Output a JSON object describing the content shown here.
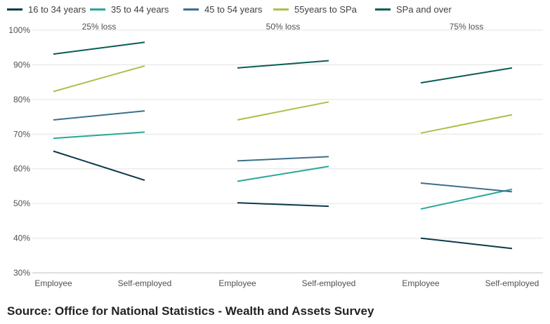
{
  "legend": {
    "items": [
      {
        "label": "16 to 34 years",
        "color": "#0b3a4a"
      },
      {
        "label": "35 to 44 years",
        "color": "#27a89a"
      },
      {
        "label": "45 to 54 years",
        "color": "#3d6f8c"
      },
      {
        "label": "55years to SPa",
        "color": "#a8c14a"
      },
      {
        "label": "SPa and over",
        "color": "#0a5c54"
      }
    ]
  },
  "source": "Source: Office for National Statistics - Wealth and Assets Survey",
  "chart_data": {
    "type": "line",
    "ylim": [
      30,
      100
    ],
    "yticks": [
      "30%",
      "40%",
      "50%",
      "60%",
      "70%",
      "80%",
      "90%",
      "100%"
    ],
    "grid": true,
    "legend_position": "top",
    "panels": [
      {
        "title": "25% loss",
        "categories": [
          "Employee",
          "Self-employed"
        ],
        "series": [
          {
            "name": "16 to 34 years",
            "values": [
              65.1,
              56.7
            ]
          },
          {
            "name": "35 to 44 years",
            "values": [
              68.8,
              70.6
            ]
          },
          {
            "name": "45 to 54 years",
            "values": [
              74.1,
              76.7
            ]
          },
          {
            "name": "55years to SPa",
            "values": [
              82.3,
              89.7
            ]
          },
          {
            "name": "SPa and over",
            "values": [
              93.1,
              96.5
            ]
          }
        ]
      },
      {
        "title": "50% loss",
        "categories": [
          "Employee",
          "Self-employed"
        ],
        "series": [
          {
            "name": "16 to 34 years",
            "values": [
              50.2,
              49.2
            ]
          },
          {
            "name": "35 to 44 years",
            "values": [
              56.4,
              60.7
            ]
          },
          {
            "name": "45 to 54 years",
            "values": [
              62.3,
              63.5
            ]
          },
          {
            "name": "55years to SPa",
            "values": [
              74.1,
              79.3
            ]
          },
          {
            "name": "SPa and over",
            "values": [
              89.1,
              91.2
            ]
          }
        ]
      },
      {
        "title": "75% loss",
        "categories": [
          "Employee",
          "Self-employed"
        ],
        "series": [
          {
            "name": "16 to 34 years",
            "values": [
              40.0,
              37.0
            ]
          },
          {
            "name": "35 to 44 years",
            "values": [
              48.4,
              54.1
            ]
          },
          {
            "name": "45 to 54 years",
            "values": [
              55.9,
              53.4
            ]
          },
          {
            "name": "55years to SPa",
            "values": [
              70.3,
              75.6
            ]
          },
          {
            "name": "SPa and over",
            "values": [
              84.8,
              89.1
            ]
          }
        ]
      }
    ]
  }
}
